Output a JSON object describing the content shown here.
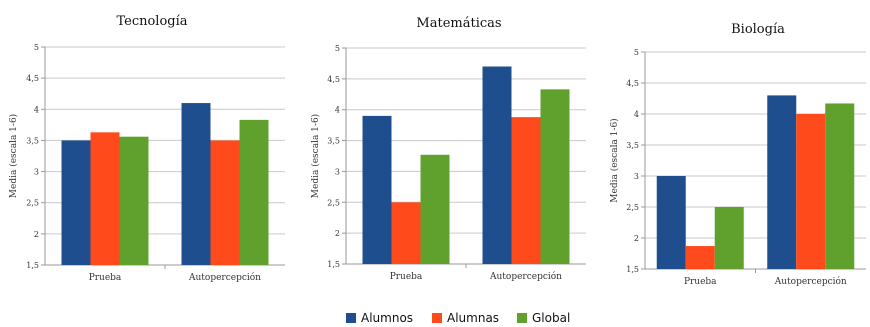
{
  "colors": {
    "Alumnos": "#1f4e8f",
    "Alumnas": "#ff4b1c",
    "Global": "#5fa12c"
  },
  "legend": [
    {
      "label": "Alumnos",
      "color": "#1f4e8f"
    },
    {
      "label": "Alumnas",
      "color": "#ff4b1c"
    },
    {
      "label": "Global",
      "color": "#5fa12c"
    }
  ],
  "chart_data": [
    {
      "type": "bar",
      "title": "Tecnología",
      "ylabel": "Media (escala 1-6)",
      "xlabel": "",
      "categories": [
        "Prueba",
        "Autopercepción"
      ],
      "ylim": [
        1.5,
        5
      ],
      "yticks": [
        "1,5",
        "2",
        "2,5",
        "3",
        "3,5",
        "4",
        "4,5",
        "5"
      ],
      "grid": true,
      "legend_position": "bottom",
      "series": [
        {
          "name": "Alumnos",
          "values": [
            3.5,
            4.1
          ]
        },
        {
          "name": "Alumnas",
          "values": [
            3.63,
            3.5
          ]
        },
        {
          "name": "Global",
          "values": [
            3.56,
            3.83
          ]
        }
      ]
    },
    {
      "type": "bar",
      "title": "Matemáticas",
      "ylabel": "Media (escala 1-6)",
      "xlabel": "",
      "categories": [
        "Prueba",
        "Autopercepción"
      ],
      "ylim": [
        1.5,
        5
      ],
      "yticks": [
        "1,5",
        "2",
        "2,5",
        "3",
        "3,5",
        "4",
        "4,5",
        "5"
      ],
      "grid": true,
      "legend_position": "bottom",
      "series": [
        {
          "name": "Alumnos",
          "values": [
            3.9,
            4.7
          ]
        },
        {
          "name": "Alumnas",
          "values": [
            2.5,
            3.88
          ]
        },
        {
          "name": "Global",
          "values": [
            3.27,
            4.33
          ]
        }
      ]
    },
    {
      "type": "bar",
      "title": "Biología",
      "ylabel": "Media (escala 1-6)",
      "xlabel": "",
      "categories": [
        "Prueba",
        "Autopercepción"
      ],
      "ylim": [
        1.5,
        5
      ],
      "yticks": [
        "1,5",
        "2",
        "2,5",
        "3",
        "3,5",
        "4",
        "4,5",
        "5"
      ],
      "grid": true,
      "legend_position": "bottom",
      "series": [
        {
          "name": "Alumnos",
          "values": [
            3.0,
            4.3
          ]
        },
        {
          "name": "Alumnas",
          "values": [
            1.87,
            4.0
          ]
        },
        {
          "name": "Global",
          "values": [
            2.5,
            4.17
          ]
        }
      ]
    }
  ]
}
